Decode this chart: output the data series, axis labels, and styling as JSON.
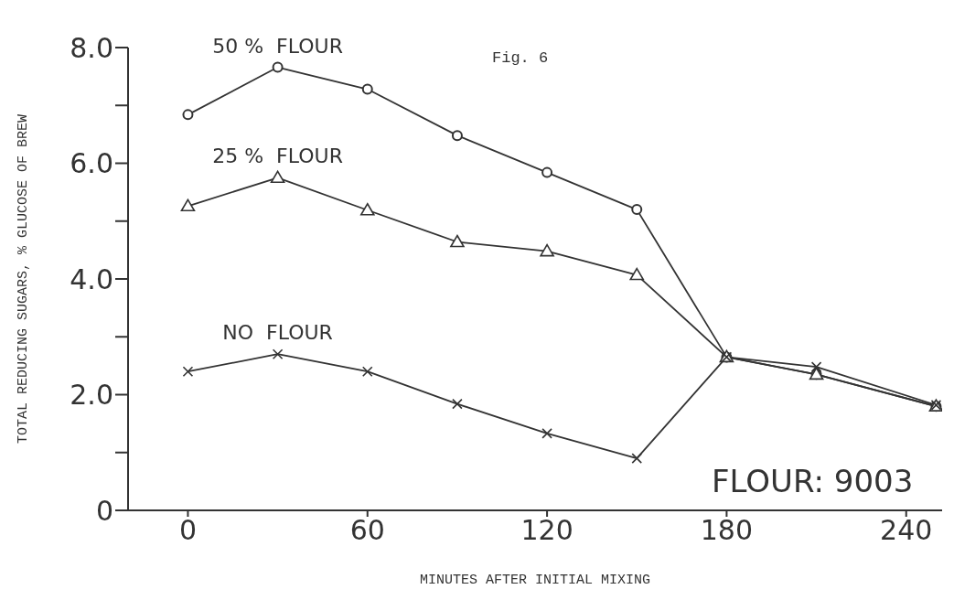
{
  "chart_data": {
    "type": "line",
    "xlabel": "MINUTES AFTER INITIAL MIXING",
    "ylabel": "TOTAL REDUCING SUGARS, % GLUCOSE OF BREW",
    "x": [
      0,
      30,
      60,
      90,
      120,
      150,
      180,
      210,
      250
    ],
    "series": [
      {
        "name": "50 %  FLOUR",
        "color": "#333333",
        "marker": "circle",
        "values": [
          6.84,
          7.66,
          7.28,
          6.48,
          5.84,
          5.2,
          2.65,
          2.35,
          1.8
        ]
      },
      {
        "name": "25 %  FLOUR",
        "color": "#333333",
        "marker": "triangle",
        "values": [
          5.26,
          5.75,
          5.19,
          4.64,
          4.48,
          4.07,
          2.65,
          2.35,
          1.8
        ]
      },
      {
        "name": "NO  FLOUR",
        "color": "#333333",
        "marker": "cross",
        "values": [
          2.4,
          2.7,
          2.4,
          1.84,
          1.33,
          0.9,
          2.65,
          2.48,
          1.82
        ]
      }
    ],
    "xlim": [
      -20,
      252
    ],
    "xticks": [
      0,
      60,
      120,
      180,
      240
    ],
    "ylim": [
      0,
      8.0
    ],
    "yticks": [
      0,
      {
        "value": 1,
        "label": null
      },
      {
        "value": 2,
        "label": "2.0"
      },
      {
        "value": 3,
        "label": null
      },
      {
        "value": 4,
        "label": "4.0"
      },
      {
        "value": 5,
        "label": null
      },
      {
        "value": 6,
        "label": "6.0"
      },
      {
        "value": 7,
        "label": null
      },
      {
        "value": 8,
        "label": "8.0"
      }
    ],
    "grid": false,
    "legend": false,
    "line_style": "solid",
    "annotations": [
      "Fig. 6",
      "FLOUR: 9003"
    ]
  }
}
